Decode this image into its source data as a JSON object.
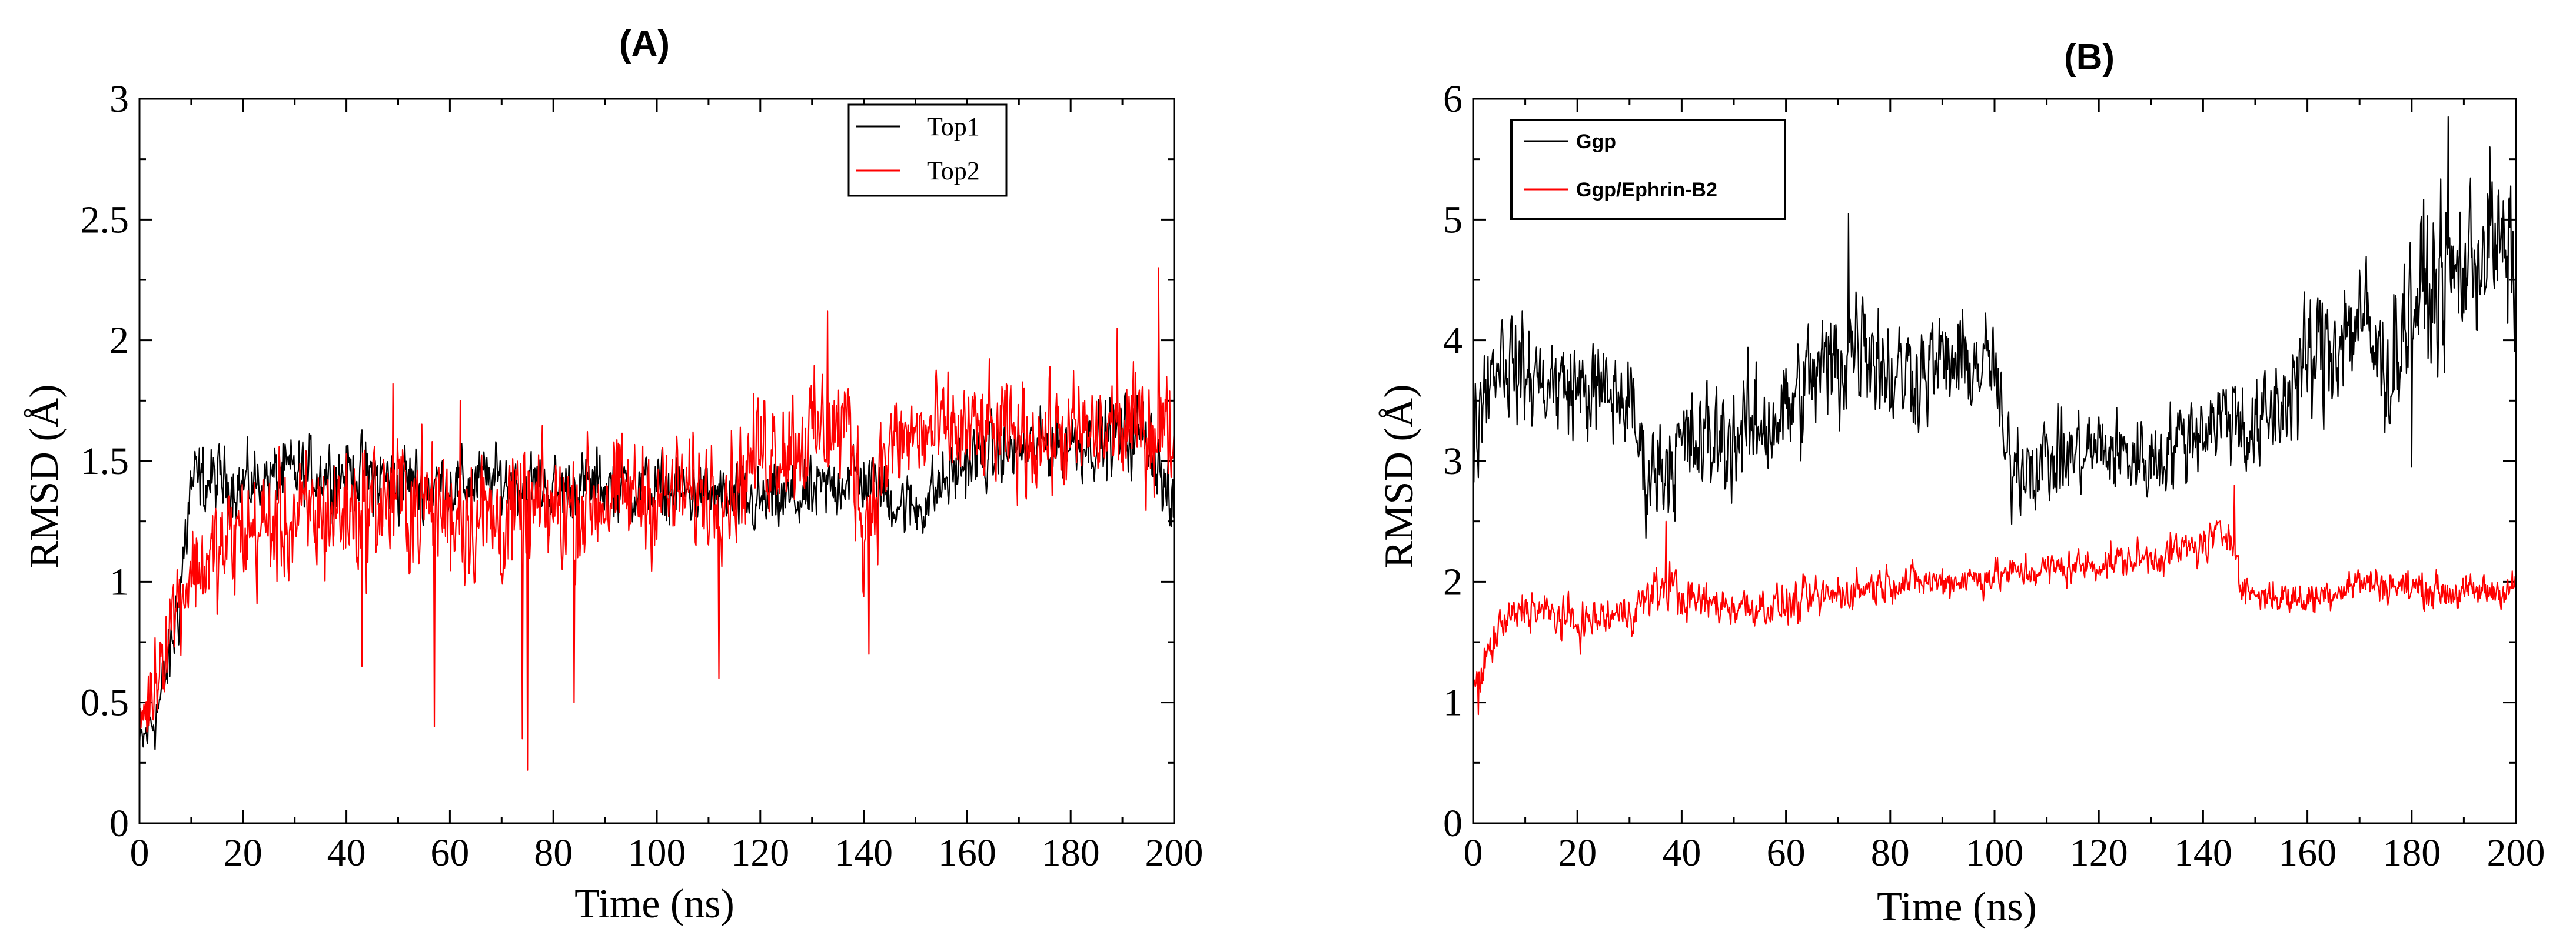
{
  "chart_data": [
    {
      "id": "A",
      "type": "line",
      "title": "(A)",
      "xlabel": "Time (ns)",
      "ylabel": "RMSD (Å)",
      "xlim": [
        0,
        200
      ],
      "ylim": [
        0,
        3
      ],
      "xticks": [
        0,
        20,
        40,
        60,
        80,
        100,
        120,
        140,
        160,
        180,
        200
      ],
      "yticks": [
        0,
        0.5,
        1,
        1.5,
        2,
        2.5,
        3
      ],
      "ytick_labels": [
        "0",
        "0.5",
        "1",
        "1.5",
        "2",
        "2.5",
        "3"
      ],
      "legend_position": "top-right",
      "series": [
        {
          "name": "Top1",
          "color": "#000000",
          "x": [
            0,
            2,
            4,
            6,
            8,
            10,
            15,
            20,
            30,
            40,
            50,
            60,
            70,
            80,
            90,
            100,
            110,
            120,
            130,
            138,
            145,
            150,
            160,
            170,
            180,
            190,
            195,
            200
          ],
          "y": [
            0.3,
            0.4,
            0.5,
            0.7,
            1.0,
            1.4,
            1.42,
            1.4,
            1.45,
            1.45,
            1.42,
            1.4,
            1.42,
            1.38,
            1.4,
            1.38,
            1.35,
            1.32,
            1.35,
            1.45,
            1.35,
            1.3,
            1.5,
            1.55,
            1.58,
            1.6,
            1.62,
            1.25
          ],
          "noise": [
            0.08,
            0.1,
            0.1,
            0.12,
            0.15,
            0.12,
            0.1,
            0.1,
            0.1,
            0.1,
            0.12,
            0.1,
            0.1,
            0.1,
            0.1,
            0.1,
            0.1,
            0.1,
            0.1,
            0.1,
            0.1,
            0.1,
            0.1,
            0.1,
            0.1,
            0.12,
            0.12,
            0.1
          ]
        },
        {
          "name": "Top2",
          "color": "#ff0000",
          "x": [
            0,
            2,
            4,
            6,
            8,
            10,
            15,
            20,
            30,
            40,
            50,
            60,
            70,
            80,
            90,
            100,
            110,
            115,
            120,
            130,
            137,
            140,
            145,
            150,
            160,
            170,
            180,
            190,
            197,
            200
          ],
          "y": [
            0.45,
            0.5,
            0.7,
            0.85,
            0.95,
            1.05,
            1.1,
            1.2,
            1.25,
            1.3,
            1.35,
            1.3,
            1.25,
            1.3,
            1.35,
            1.35,
            1.38,
            1.4,
            1.55,
            1.6,
            1.65,
            1.25,
            1.55,
            1.6,
            1.62,
            1.6,
            1.6,
            1.62,
            1.65,
            1.6
          ],
          "noise": [
            0.1,
            0.12,
            0.15,
            0.15,
            0.15,
            0.15,
            0.18,
            0.18,
            0.18,
            0.2,
            0.2,
            0.2,
            0.2,
            0.18,
            0.18,
            0.16,
            0.16,
            0.16,
            0.18,
            0.18,
            0.18,
            0.2,
            0.16,
            0.16,
            0.16,
            0.16,
            0.16,
            0.16,
            0.18,
            0.16
          ],
          "spikes": [
            [
              43,
              0.65
            ],
            [
              49,
              1.82
            ],
            [
              57,
              0.4
            ],
            [
              62,
              1.75
            ],
            [
              74,
              0.35
            ],
            [
              75,
              0.22
            ],
            [
              84,
              0.5
            ],
            [
              112,
              0.6
            ],
            [
              133,
              2.12
            ],
            [
              141,
              0.7
            ],
            [
              189,
              2.05
            ],
            [
              197,
              2.3
            ]
          ]
        }
      ]
    },
    {
      "id": "B",
      "type": "line",
      "title": "(B)",
      "xlabel": "Time (ns)",
      "ylabel": "RMSD (Å)",
      "xlim": [
        0,
        200
      ],
      "ylim": [
        0,
        6
      ],
      "xticks": [
        0,
        20,
        40,
        60,
        80,
        100,
        120,
        140,
        160,
        180,
        200
      ],
      "yticks": [
        0,
        1,
        2,
        3,
        4,
        5,
        6
      ],
      "ytick_labels": [
        "0",
        "1",
        "2",
        "3",
        "4",
        "5",
        "6"
      ],
      "legend_position": "top-left",
      "series": [
        {
          "name": "Ggp",
          "color": "#000000",
          "x": [
            0,
            2,
            5,
            10,
            20,
            30,
            33,
            40,
            50,
            60,
            65,
            70,
            75,
            80,
            90,
            100,
            102,
            110,
            120,
            130,
            140,
            146,
            150,
            155,
            160,
            170,
            175,
            180,
            190,
            195,
            200
          ],
          "y": [
            3.2,
            3.6,
            3.9,
            3.7,
            3.6,
            3.5,
            2.9,
            3.1,
            3.2,
            3.4,
            3.7,
            3.8,
            4.1,
            3.7,
            3.8,
            3.8,
            3.0,
            3.0,
            3.1,
            3.0,
            3.3,
            3.4,
            3.2,
            3.5,
            3.8,
            4.2,
            3.7,
            4.3,
            4.6,
            4.8,
            4.6
          ],
          "noise": [
            0.35,
            0.3,
            0.3,
            0.3,
            0.3,
            0.3,
            0.3,
            0.35,
            0.35,
            0.35,
            0.35,
            0.4,
            0.4,
            0.35,
            0.3,
            0.3,
            0.3,
            0.25,
            0.25,
            0.25,
            0.25,
            0.3,
            0.3,
            0.35,
            0.4,
            0.4,
            0.4,
            0.45,
            0.45,
            0.45,
            0.45
          ],
          "spikes": [
            [
              72,
              5.05
            ],
            [
              105,
              2.55
            ],
            [
              180,
              2.95
            ],
            [
              187,
              5.85
            ],
            [
              195,
              5.6
            ]
          ]
        },
        {
          "name": "Ggp/Ephrin-B2",
          "color": "#ff0000",
          "x": [
            0,
            2,
            5,
            10,
            20,
            30,
            38,
            40,
            50,
            60,
            70,
            80,
            90,
            100,
            110,
            120,
            130,
            140,
            146,
            147,
            150,
            160,
            170,
            180,
            190,
            200
          ],
          "y": [
            1.1,
            1.3,
            1.6,
            1.8,
            1.65,
            1.75,
            2.0,
            1.85,
            1.8,
            1.8,
            1.9,
            2.0,
            2.0,
            2.05,
            2.1,
            2.15,
            2.2,
            2.3,
            2.45,
            1.95,
            1.9,
            1.85,
            2.0,
            1.95,
            1.9,
            1.95
          ],
          "noise": [
            0.12,
            0.12,
            0.12,
            0.12,
            0.12,
            0.12,
            0.15,
            0.12,
            0.12,
            0.12,
            0.12,
            0.1,
            0.1,
            0.1,
            0.1,
            0.1,
            0.1,
            0.12,
            0.12,
            0.1,
            0.1,
            0.1,
            0.1,
            0.1,
            0.1,
            0.1
          ],
          "spikes": [
            [
              1,
              0.9
            ],
            [
              37,
              2.5
            ],
            [
              146,
              2.8
            ]
          ]
        }
      ]
    }
  ]
}
